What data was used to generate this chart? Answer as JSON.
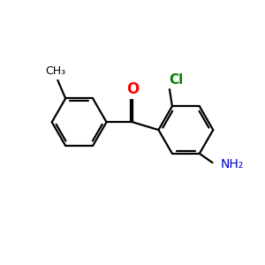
{
  "background_color": "#ffffff",
  "bond_color": "#000000",
  "o_color": "#ff0000",
  "cl_color": "#008000",
  "n_color": "#0000cc",
  "ch3_color": "#000000",
  "line_width": 1.6,
  "figsize": [
    3.0,
    3.0
  ],
  "dpi": 100,
  "xlim": [
    0,
    10
  ],
  "ylim": [
    0,
    10
  ]
}
